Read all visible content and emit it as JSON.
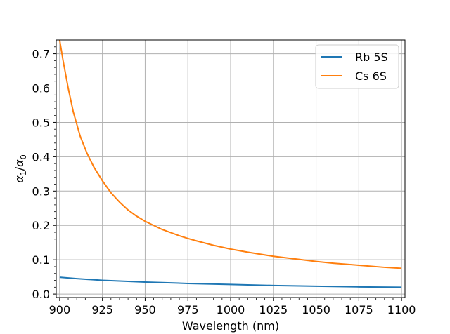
{
  "chart_data": {
    "type": "line",
    "title": "",
    "xlabel": "Wavelength (nm)",
    "ylabel_base": "α",
    "ylabel_num_sub": "1",
    "ylabel_sep": "/",
    "ylabel_den_sub": "0",
    "xlim": [
      898,
      1102
    ],
    "ylim": [
      -0.01,
      0.74
    ],
    "xticks": [
      900,
      925,
      950,
      975,
      1000,
      1025,
      1050,
      1075,
      1100
    ],
    "xtick_labels": [
      "900",
      "925",
      "950",
      "975",
      "1000",
      "1025",
      "1050",
      "1075",
      "1100"
    ],
    "yticks": [
      0.0,
      0.1,
      0.2,
      0.3,
      0.4,
      0.5,
      0.6,
      0.7
    ],
    "ytick_labels": [
      "0.0",
      "0.1",
      "0.2",
      "0.3",
      "0.4",
      "0.5",
      "0.6",
      "0.7"
    ],
    "grid": true,
    "legend_position": "top-right",
    "series": [
      {
        "name": "Rb 5S",
        "color": "#1f77b4",
        "x": [
          900,
          910,
          925,
          940,
          950,
          975,
          1000,
          1025,
          1050,
          1075,
          1100
        ],
        "y": [
          0.049,
          0.045,
          0.04,
          0.037,
          0.035,
          0.031,
          0.028,
          0.025,
          0.023,
          0.021,
          0.02
        ]
      },
      {
        "name": "Cs 6S",
        "color": "#ff7f0e",
        "x": [
          900,
          902,
          905,
          908,
          912,
          916,
          920,
          925,
          930,
          935,
          940,
          945,
          950,
          960,
          970,
          975,
          980,
          990,
          1000,
          1010,
          1025,
          1040,
          1050,
          1060,
          1075,
          1090,
          1100
        ],
        "y": [
          0.74,
          0.68,
          0.6,
          0.53,
          0.46,
          0.41,
          0.37,
          0.33,
          0.295,
          0.268,
          0.245,
          0.227,
          0.212,
          0.188,
          0.17,
          0.162,
          0.155,
          0.142,
          0.131,
          0.122,
          0.11,
          0.101,
          0.095,
          0.09,
          0.084,
          0.078,
          0.075
        ]
      }
    ]
  }
}
